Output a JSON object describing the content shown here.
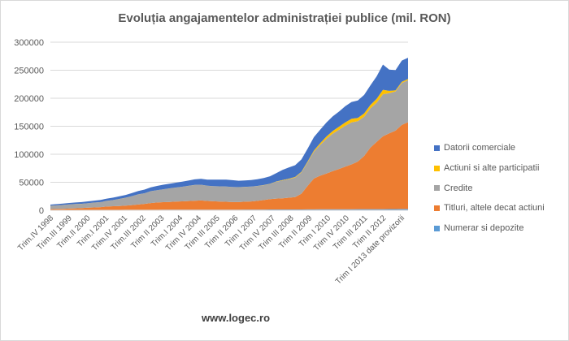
{
  "chart_data": {
    "type": "area",
    "title": "Evoluția angajamentelor administrației publice (mil. RON)",
    "xlabel": "",
    "ylabel": "",
    "ylim": [
      0,
      300000
    ],
    "yticks": [
      0,
      50000,
      100000,
      150000,
      200000,
      250000,
      300000
    ],
    "ytick_labels": [
      "0",
      "50000",
      "100000",
      "150000",
      "200000",
      "250000",
      "300000"
    ],
    "stacked": true,
    "grid": true,
    "legend_position": "right",
    "xtick_labels": [
      "Trim.IV 1998",
      "Trim.III 1999",
      "Trim.II 2000",
      "Trim.I 2001",
      "Trim.IV 2001",
      "Trim.III 2002",
      "Trim II 2003",
      "Trim.I 2004",
      "Trim IV 2004",
      "Trim III 2005",
      "Trim II 2006",
      "Trim I 2007",
      "Trim IV 2007",
      "Trim III 2008",
      "Trim II 2009",
      "Trim I 2010",
      "Trim IV 2010",
      "Trim III 2011",
      "Trim II 2012",
      "Trim I 2013 date provizorii"
    ],
    "categories": [
      "Trim.IV 1998",
      "Trim.I 1999",
      "Trim.II 1999",
      "Trim.III 1999",
      "Trim.IV 1999",
      "Trim.I 2000",
      "Trim.II 2000",
      "Trim.III 2000",
      "Trim.IV 2000",
      "Trim.I 2001",
      "Trim.II 2001",
      "Trim.III 2001",
      "Trim.IV 2001",
      "Trim.I 2002",
      "Trim.II 2002",
      "Trim.III 2002",
      "Trim.IV 2002",
      "Trim I 2003",
      "Trim II 2003",
      "Trim III 2003",
      "Trim IV 2003",
      "Trim.I 2004",
      "Trim II 2004",
      "Trim III 2004",
      "Trim IV 2004",
      "Trim I 2005",
      "Trim II 2005",
      "Trim III 2005",
      "Trim IV 2005",
      "Trim I 2006",
      "Trim II 2006",
      "Trim III 2006",
      "Trim IV 2006",
      "Trim I 2007",
      "Trim II 2007",
      "Trim III 2007",
      "Trim IV 2007",
      "Trim I 2008",
      "Trim II 2008",
      "Trim III 2008",
      "Trim IV 2008",
      "Trim I 2009",
      "Trim II 2009",
      "Trim III 2009",
      "Trim IV 2009",
      "Trim I 2010",
      "Trim II 2010",
      "Trim III 2010",
      "Trim IV 2010",
      "Trim I 2011",
      "Trim II 2011",
      "Trim III 2011",
      "Trim IV 2011",
      "Trim I 2012",
      "Trim II 2012",
      "Trim III 2012",
      "Trim IV 2012",
      "Trim I 2013 date provizorii"
    ],
    "series": [
      {
        "name": "Numerar si depozite",
        "color": "#5b9bd5",
        "values": [
          500,
          500,
          500,
          500,
          500,
          500,
          600,
          600,
          600,
          700,
          700,
          700,
          800,
          800,
          800,
          900,
          900,
          900,
          1000,
          1000,
          1000,
          1000,
          1000,
          1100,
          1100,
          1100,
          1100,
          1200,
          1200,
          1200,
          1200,
          1300,
          1300,
          1300,
          1300,
          1400,
          1400,
          1400,
          1500,
          1500,
          1500,
          1600,
          1600,
          1700,
          1700,
          1800,
          1800,
          1900,
          1900,
          2000,
          2000,
          2000,
          2100,
          2100,
          2200,
          2200,
          2300,
          2300
        ]
      },
      {
        "name": "Titluri, altele decat actiuni",
        "color": "#ed7d31",
        "values": [
          1500,
          1800,
          2000,
          2500,
          3000,
          3500,
          4000,
          4500,
          5000,
          6000,
          6500,
          7000,
          7500,
          8500,
          9500,
          10500,
          12000,
          13000,
          13500,
          14000,
          14500,
          15000,
          15500,
          16000,
          16500,
          15500,
          15000,
          14500,
          14000,
          13500,
          13500,
          14000,
          14500,
          15500,
          17000,
          18500,
          19500,
          20000,
          21000,
          22000,
          28000,
          42000,
          55000,
          60000,
          64000,
          68000,
          72000,
          76000,
          80000,
          85000,
          95000,
          110000,
          120000,
          130000,
          135000,
          140000,
          150000,
          155000
        ]
      },
      {
        "name": "Credite",
        "color": "#a5a5a5",
        "values": [
          6000,
          6500,
          7000,
          7500,
          7500,
          7500,
          8000,
          8500,
          9000,
          10000,
          11000,
          12500,
          14000,
          16000,
          18000,
          19000,
          21000,
          22000,
          23000,
          24000,
          25000,
          26000,
          27000,
          28000,
          28000,
          27000,
          27000,
          27000,
          27000,
          27000,
          26500,
          26500,
          26500,
          26500,
          26500,
          27000,
          30000,
          32000,
          33000,
          35000,
          38000,
          42000,
          48000,
          55000,
          62000,
          67000,
          70000,
          73000,
          75000,
          72000,
          70000,
          70000,
          70000,
          75000,
          72000,
          70000,
          75000,
          75000
        ]
      },
      {
        "name": "Actiuni si alte participatii",
        "color": "#ffc000",
        "values": [
          100,
          100,
          100,
          100,
          100,
          100,
          100,
          100,
          100,
          100,
          100,
          100,
          100,
          100,
          100,
          100,
          100,
          100,
          100,
          100,
          100,
          100,
          100,
          100,
          100,
          100,
          100,
          100,
          100,
          100,
          100,
          100,
          100,
          200,
          200,
          300,
          500,
          700,
          900,
          1000,
          1200,
          1600,
          2000,
          3000,
          4000,
          5000,
          5500,
          6000,
          6500,
          6000,
          6000,
          6000,
          7000,
          8000,
          4000,
          2000,
          2000,
          2000
        ]
      },
      {
        "name": "Datorii comerciale",
        "color": "#4472c4",
        "values": [
          2000,
          2100,
          2300,
          2500,
          2800,
          3000,
          3200,
          3500,
          3800,
          4000,
          4300,
          4600,
          5000,
          5500,
          6000,
          6500,
          7000,
          7500,
          8000,
          8500,
          8700,
          9000,
          9500,
          10000,
          10500,
          11000,
          11500,
          12000,
          12500,
          12000,
          11500,
          11500,
          11500,
          12000,
          12500,
          13500,
          15000,
          18000,
          20000,
          21000,
          22000,
          23000,
          24000,
          24000,
          25000,
          26000,
          27000,
          29000,
          30000,
          31000,
          33000,
          35000,
          40000,
          45000,
          38000,
          36000,
          38000,
          38000
        ]
      }
    ],
    "legend_order": [
      "Datorii comerciale",
      "Actiuni si alte participatii",
      "Credite",
      "Titluri, altele decat actiuni",
      "Numerar si depozite"
    ],
    "footer": "www.logec.ro",
    "gridline_color": "#d9d9d9",
    "axis_text_color": "#595959"
  }
}
